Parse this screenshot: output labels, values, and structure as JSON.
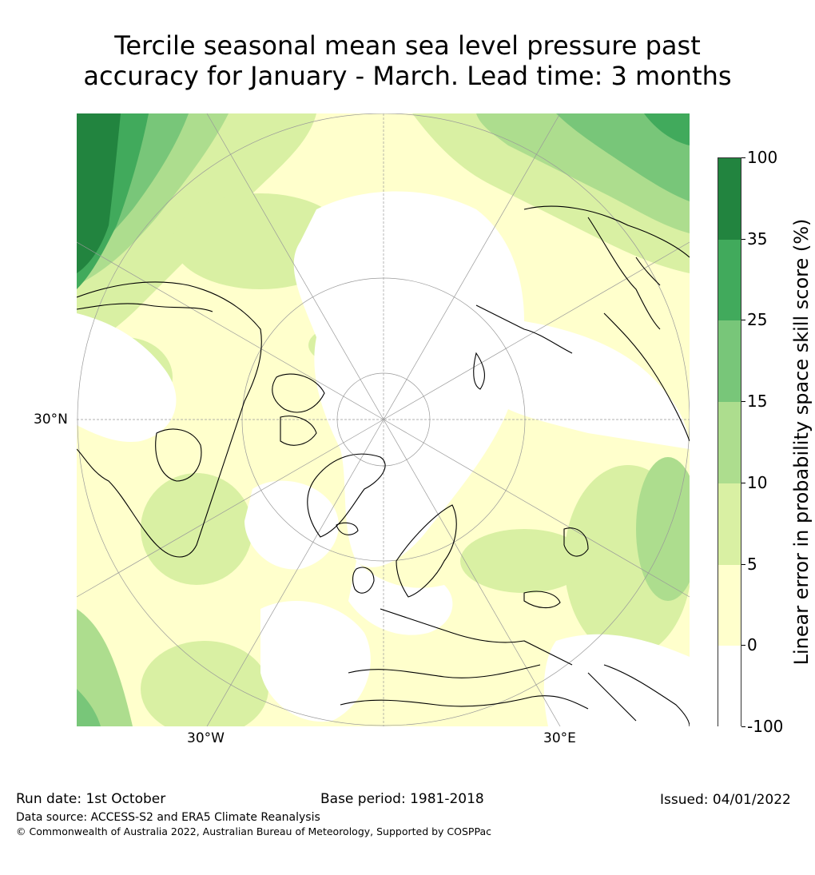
{
  "title": {
    "line1": "Tercile seasonal mean sea level pressure past",
    "line2": "accuracy for January - March. Lead time: 3 months"
  },
  "map": {
    "projection": "north-polar-stereographic",
    "lat_label": "30°N",
    "lon_label_left": "30°W",
    "lon_label_right": "30°E"
  },
  "colorbar": {
    "label": "Linear error in probability space skill score (%)",
    "ticks": [
      "100",
      "35",
      "25",
      "15",
      "10",
      "5",
      "0",
      "-100"
    ],
    "bins": [
      {
        "from": "35",
        "to": "100",
        "color": "#22843f"
      },
      {
        "from": "25",
        "to": "35",
        "color": "#41aa5c"
      },
      {
        "from": "15",
        "to": "25",
        "color": "#78c679"
      },
      {
        "from": "10",
        "to": "15",
        "color": "#addd8e"
      },
      {
        "from": "5",
        "to": "10",
        "color": "#d9f0a3"
      },
      {
        "from": "0",
        "to": "5",
        "color": "#ffffcc"
      },
      {
        "from": "-100",
        "to": "0",
        "color": "#ffffff"
      }
    ]
  },
  "footer": {
    "run_date": "Run date: 1st October",
    "base_period": "Base period: 1981-2018",
    "issued": "Issued: 04/01/2022",
    "data_source": "Data source: ACCESS-S2 and ERA5 Climate Reanalysis",
    "copyright": "© Commonwealth of Australia 2022, Australian Bureau of Meteorology, Supported by COSPPac"
  }
}
